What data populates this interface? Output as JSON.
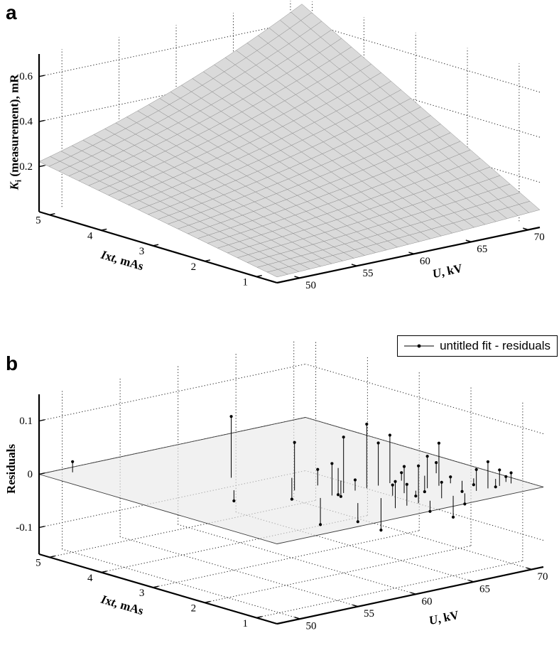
{
  "panels": {
    "a": {
      "tag": "a",
      "xlabel": {
        "it": "U",
        "rest": ", kV"
      },
      "ylabel": {
        "it1": "I",
        "mid": "x",
        "it2": "t",
        "rest": ", mAs"
      },
      "zlabel": {
        "it": "K",
        "sub": "i",
        "rest": " (measurement), mR"
      }
    },
    "b": {
      "tag": "b",
      "xlabel": {
        "it": "U",
        "rest": ", kV"
      },
      "ylabel": {
        "it1": "I",
        "mid": "x",
        "it2": "t",
        "rest": ", mAs"
      },
      "zlabel": "Residuals",
      "legend_label": "untitled fit - residuals"
    }
  },
  "chart_data": [
    {
      "id": "a",
      "type": "surface",
      "title": "",
      "xlabel": "U, kV",
      "ylabel": "Ixt, mAs",
      "zlabel": "Ki (measurement), mR",
      "x_range": [
        48,
        71
      ],
      "y_range": [
        0.6,
        5.2
      ],
      "z_range": [
        0,
        0.7
      ],
      "x_ticks": [
        50,
        55,
        60,
        65,
        70
      ],
      "y_ticks": [
        1,
        2,
        3,
        4,
        5
      ],
      "z_ticks": [
        0.2,
        0.4,
        0.6
      ],
      "grid": "dotted",
      "legend_position": "none",
      "surface": {
        "formula": "K = c * Ixt * (U/ref)^p",
        "c": 0.048,
        "p": 2.84,
        "ref": 50,
        "grid_n": 24
      },
      "surface_fill": "#dadada",
      "surface_line": "#8f8f8f"
    },
    {
      "id": "b",
      "type": "stem3",
      "title": "",
      "legend": "untitled fit - residuals",
      "legend_position": "top-right",
      "xlabel": "U, kV",
      "ylabel": "Ixt, mAs",
      "zlabel": "Residuals",
      "x_range": [
        48,
        71
      ],
      "y_range": [
        0.6,
        5.2
      ],
      "z_range": [
        -0.15,
        0.15
      ],
      "x_ticks": [
        50,
        55,
        60,
        65,
        70
      ],
      "y_ticks": [
        1,
        2,
        3,
        4,
        5
      ],
      "z_ticks": [
        -0.1,
        0,
        0.1
      ],
      "grid": "dotted",
      "floor_grid": true,
      "zero_plane": true,
      "points": [
        [
          50,
          5,
          0.02
        ],
        [
          57,
          3.5,
          0.115
        ],
        [
          55,
          3,
          -0.02
        ],
        [
          58,
          2.5,
          0.09
        ],
        [
          58,
          2,
          -0.05
        ],
        [
          59,
          2,
          0.06
        ],
        [
          59,
          1.5,
          -0.035
        ],
        [
          60,
          2,
          0.105
        ],
        [
          60,
          1,
          0.05
        ],
        [
          60,
          3,
          -0.04
        ],
        [
          60,
          2.5,
          0.03
        ],
        [
          61,
          2,
          0.02
        ],
        [
          61,
          1.5,
          -0.06
        ],
        [
          61,
          1,
          0.04
        ],
        [
          62,
          2,
          0.12
        ],
        [
          62,
          1,
          0.07
        ],
        [
          62,
          2.5,
          -0.03
        ],
        [
          62,
          1.5,
          0.02
        ],
        [
          63,
          1.5,
          0.05
        ],
        [
          63,
          1,
          -0.02
        ],
        [
          63,
          2,
          0.08
        ],
        [
          64,
          2,
          0.09
        ],
        [
          64,
          1,
          0.03
        ],
        [
          64,
          3,
          -0.05
        ],
        [
          64,
          1.5,
          -0.01
        ],
        [
          65,
          1.5,
          0.06
        ],
        [
          65,
          1,
          -0.04
        ],
        [
          65,
          2,
          0.015
        ],
        [
          66,
          1.5,
          0.08
        ],
        [
          66,
          1,
          -0.02
        ],
        [
          67,
          1,
          0.04
        ],
        [
          67,
          2,
          -0.03
        ],
        [
          67,
          1.5,
          0.012
        ],
        [
          68,
          1,
          0.05
        ],
        [
          68,
          1.5,
          -0.02
        ],
        [
          68,
          2,
          0.02
        ],
        [
          69,
          1,
          0.03
        ],
        [
          69,
          1.5,
          -0.012
        ],
        [
          70,
          1,
          0.02
        ],
        [
          70,
          1.3,
          -0.015
        ],
        [
          70,
          1.1,
          0.01
        ]
      ]
    }
  ]
}
